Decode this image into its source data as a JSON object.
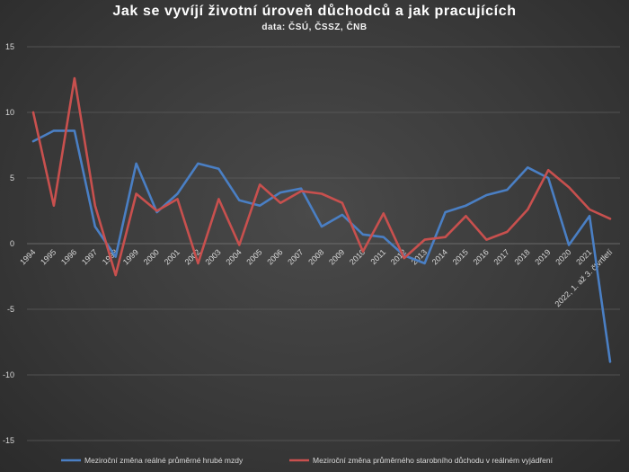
{
  "chart_data": {
    "type": "line",
    "title": "Jak se vyvíjí životní úroveň důchodců a jak pracujících",
    "subtitle": "data: ČSÚ, ČSSZ, ČNB",
    "categories": [
      "1994",
      "1995",
      "1996",
      "1997",
      "1998",
      "1999",
      "2000",
      "2001",
      "2002",
      "2003",
      "2004",
      "2005",
      "2006",
      "2007",
      "2008",
      "2009",
      "2010",
      "2011",
      "2012",
      "2013",
      "2014",
      "2015",
      "2016",
      "2017",
      "2018",
      "2019",
      "2020",
      "2021",
      "2022, 1. až 3. čtvrtletí"
    ],
    "ylim": [
      -15,
      15
    ],
    "yticks": [
      -15,
      -10,
      -5,
      0,
      5,
      10,
      15
    ],
    "grid": true,
    "legend_position": "bottom",
    "series": [
      {
        "name": "Meziroční změna reálné průměrné hrubé mzdy",
        "color": "#4a7fc4",
        "values": [
          7.8,
          8.6,
          8.6,
          1.3,
          -1.0,
          6.1,
          2.4,
          3.8,
          6.1,
          5.7,
          3.3,
          2.9,
          3.9,
          4.2,
          1.3,
          2.2,
          0.7,
          0.5,
          -0.9,
          -1.5,
          2.4,
          2.9,
          3.7,
          4.1,
          5.8,
          5.0,
          -0.1,
          2.1,
          -9.0
        ]
      },
      {
        "name": "Meziroční změna průměrného starobního důchodu v reálném vyjádření",
        "color": "#c8504e",
        "values": [
          10.0,
          2.9,
          12.6,
          2.9,
          -2.4,
          3.8,
          2.5,
          3.4,
          -1.5,
          3.4,
          -0.1,
          4.5,
          3.1,
          4.0,
          3.8,
          3.1,
          -0.6,
          2.3,
          -1.1,
          0.3,
          0.5,
          2.1,
          0.3,
          0.9,
          2.6,
          5.6,
          4.3,
          2.6,
          1.9
        ]
      }
    ]
  }
}
